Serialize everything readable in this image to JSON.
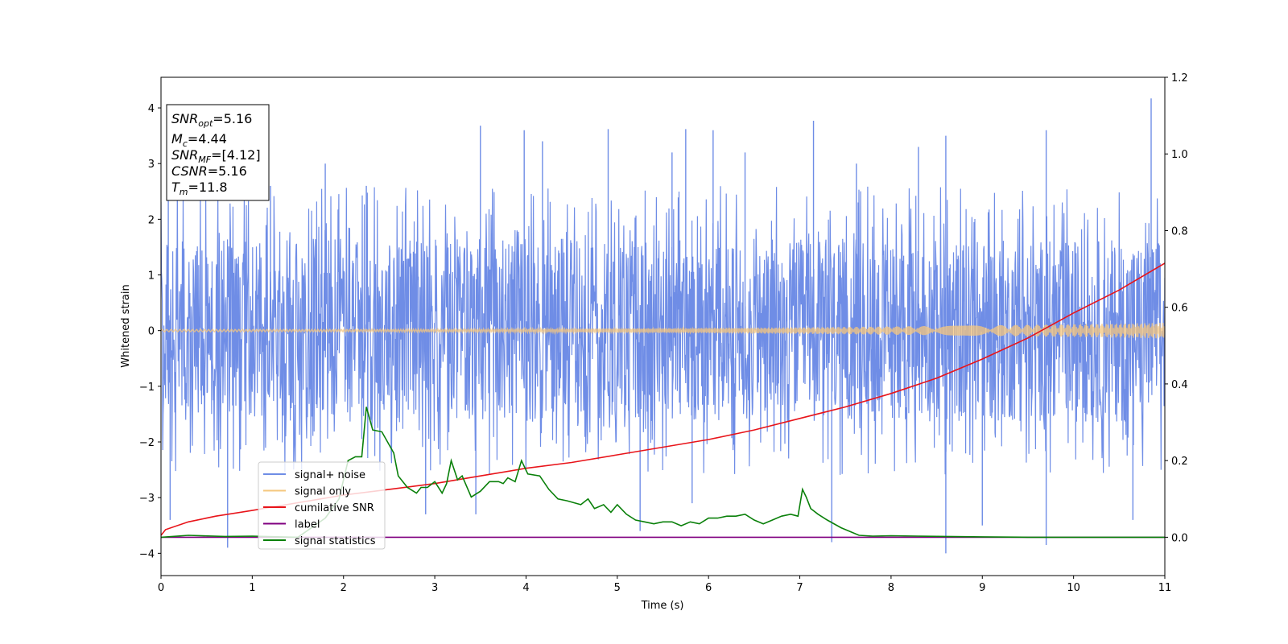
{
  "chart_data": {
    "type": "line",
    "xlabel": "Time (s)",
    "ylabel": "Whitened strain",
    "xlim": [
      0,
      11
    ],
    "ylim": [
      -4.4,
      4.55
    ],
    "y2lim": [
      -0.1,
      1.2
    ],
    "xticks": [
      0,
      1,
      2,
      3,
      4,
      5,
      6,
      7,
      8,
      9,
      10,
      11
    ],
    "yticks": [
      -4,
      -3,
      -2,
      -1,
      0,
      1,
      2,
      3,
      4
    ],
    "y2ticks": [
      0.0,
      0.2,
      0.4,
      0.6,
      0.8,
      1.0,
      1.2
    ],
    "grid": false,
    "legend_position": "lower-left",
    "info_box": {
      "position": "top-left",
      "lines": [
        {
          "name": "SNR",
          "sub": "opt",
          "value": "=5.16"
        },
        {
          "name": "M",
          "sub": "c",
          "value": "=4.44"
        },
        {
          "name": "SNR",
          "sub": "MF",
          "value": "=[4.12]"
        },
        {
          "name": "CSNR",
          "sub": "",
          "value": "=5.16"
        },
        {
          "name": "T",
          "sub": "m",
          "value": "=11.8"
        }
      ]
    },
    "series": [
      {
        "name": "signal+ noise",
        "axis": "left",
        "color": "#6f8de6",
        "kind": "noise_band",
        "typical_band": [
          -1.6,
          1.6
        ],
        "spike_range": [
          -4.0,
          4.2
        ],
        "spikes": [
          {
            "x": 0.08,
            "y": 2.7
          },
          {
            "x": 0.1,
            "y": -3.4
          },
          {
            "x": 0.73,
            "y": -3.9
          },
          {
            "x": 1.2,
            "y": 2.6
          },
          {
            "x": 1.8,
            "y": 3.0
          },
          {
            "x": 2.25,
            "y": 2.6
          },
          {
            "x": 2.9,
            "y": -3.3
          },
          {
            "x": 3.5,
            "y": 3.68
          },
          {
            "x": 3.45,
            "y": -3.3
          },
          {
            "x": 3.98,
            "y": 3.6
          },
          {
            "x": 4.18,
            "y": 3.4
          },
          {
            "x": 4.9,
            "y": 3.62
          },
          {
            "x": 5.25,
            "y": -3.6
          },
          {
            "x": 5.6,
            "y": 3.2
          },
          {
            "x": 5.75,
            "y": 3.62
          },
          {
            "x": 5.82,
            "y": -3.1
          },
          {
            "x": 6.05,
            "y": 3.6
          },
          {
            "x": 6.4,
            "y": 3.2
          },
          {
            "x": 7.15,
            "y": 3.77
          },
          {
            "x": 7.35,
            "y": -3.8
          },
          {
            "x": 7.62,
            "y": 3.0
          },
          {
            "x": 8.3,
            "y": 3.3
          },
          {
            "x": 8.6,
            "y": -4.0
          },
          {
            "x": 8.6,
            "y": 3.5
          },
          {
            "x": 9.0,
            "y": -3.5
          },
          {
            "x": 9.7,
            "y": 3.6
          },
          {
            "x": 9.7,
            "y": -3.85
          },
          {
            "x": 10.65,
            "y": -3.4
          },
          {
            "x": 10.85,
            "y": 4.17
          }
        ]
      },
      {
        "name": "signal only",
        "axis": "left",
        "color": "#f5c77e",
        "kind": "chirp",
        "amplitude_start": 0.02,
        "amplitude_end": 0.14
      },
      {
        "name": "cumilative SNR",
        "axis": "right",
        "color": "#e8141a",
        "x": [
          0.0,
          0.05,
          0.3,
          0.6,
          1.0,
          1.5,
          2.0,
          2.5,
          3.0,
          3.5,
          4.0,
          4.5,
          5.0,
          5.5,
          6.0,
          6.5,
          7.0,
          7.5,
          8.0,
          8.5,
          9.0,
          9.5,
          10.0,
          10.5,
          11.0
        ],
        "y": [
          0.005,
          0.02,
          0.04,
          0.055,
          0.07,
          0.09,
          0.11,
          0.125,
          0.14,
          0.16,
          0.18,
          0.195,
          0.215,
          0.235,
          0.255,
          0.28,
          0.31,
          0.34,
          0.375,
          0.415,
          0.465,
          0.52,
          0.585,
          0.645,
          0.715
        ]
      },
      {
        "name": "label",
        "axis": "right",
        "color": "#800080",
        "x": [
          0.0,
          11.0
        ],
        "y": [
          0.0,
          0.0
        ]
      },
      {
        "name": "signal statistics",
        "axis": "right",
        "color": "#0a800a",
        "x": [
          0.0,
          0.3,
          0.7,
          1.0,
          1.5,
          1.8,
          1.95,
          2.05,
          2.13,
          2.2,
          2.25,
          2.32,
          2.42,
          2.55,
          2.6,
          2.7,
          2.8,
          2.85,
          2.92,
          3.0,
          3.08,
          3.13,
          3.18,
          3.25,
          3.3,
          3.4,
          3.5,
          3.6,
          3.7,
          3.75,
          3.8,
          3.88,
          3.95,
          4.02,
          4.15,
          4.25,
          4.35,
          4.45,
          4.6,
          4.68,
          4.75,
          4.85,
          4.93,
          5.0,
          5.1,
          5.2,
          5.3,
          5.4,
          5.5,
          5.6,
          5.7,
          5.8,
          5.9,
          6.0,
          6.1,
          6.2,
          6.3,
          6.4,
          6.5,
          6.6,
          6.7,
          6.8,
          6.9,
          6.98,
          7.03,
          7.07,
          7.12,
          7.2,
          7.3,
          7.45,
          7.55,
          7.65,
          7.8,
          8.0,
          8.3,
          8.6,
          9.0,
          9.5,
          10.0,
          10.5,
          11.0
        ],
        "y": [
          0.0,
          0.005,
          0.002,
          0.003,
          0.0,
          0.05,
          0.1,
          0.2,
          0.21,
          0.21,
          0.34,
          0.28,
          0.275,
          0.22,
          0.16,
          0.13,
          0.115,
          0.13,
          0.13,
          0.145,
          0.115,
          0.14,
          0.2,
          0.15,
          0.16,
          0.105,
          0.12,
          0.145,
          0.145,
          0.14,
          0.155,
          0.145,
          0.2,
          0.165,
          0.16,
          0.125,
          0.1,
          0.095,
          0.085,
          0.1,
          0.075,
          0.085,
          0.065,
          0.085,
          0.06,
          0.045,
          0.04,
          0.035,
          0.04,
          0.04,
          0.03,
          0.04,
          0.035,
          0.05,
          0.05,
          0.055,
          0.055,
          0.06,
          0.045,
          0.035,
          0.045,
          0.055,
          0.06,
          0.055,
          0.125,
          0.105,
          0.075,
          0.06,
          0.045,
          0.025,
          0.015,
          0.005,
          0.003,
          0.004,
          0.003,
          0.002,
          0.001,
          0.0,
          0.0,
          0.0,
          0.0
        ]
      }
    ]
  }
}
